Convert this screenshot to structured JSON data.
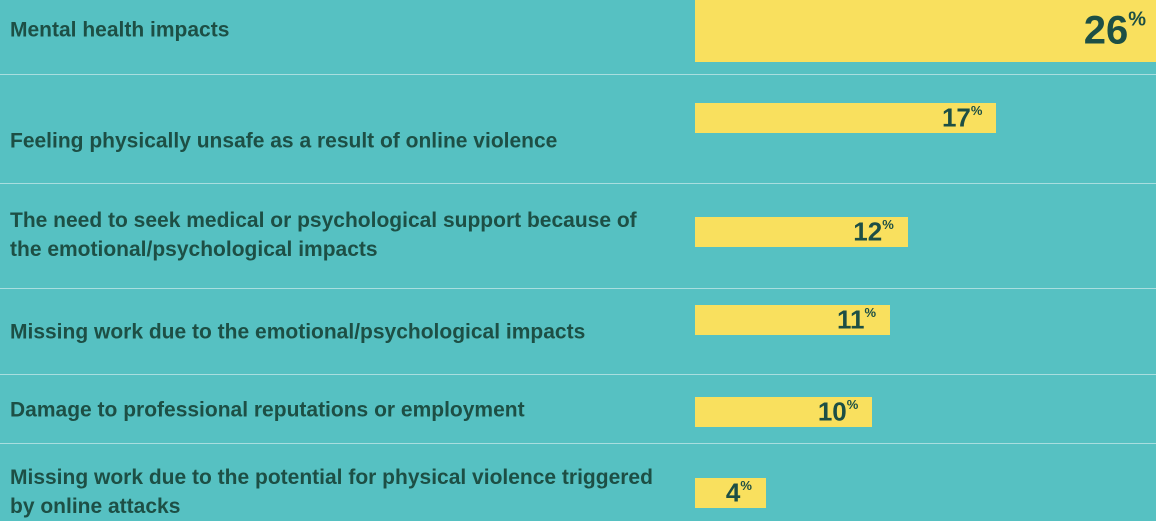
{
  "chart_data": {
    "type": "bar",
    "orientation": "horizontal",
    "categories": [
      "Mental health impacts",
      "Feeling physically unsafe as a result of online violence",
      "The need to seek medical or psychological support because of the emotional/psychological impacts",
      "Missing work due to the emotional/psychological impacts",
      "Damage to professional reputations or employment",
      "Missing work due to the potential for physical violence triggered by online attacks"
    ],
    "values": [
      26,
      17,
      12,
      11,
      10,
      4
    ],
    "value_labels": [
      "26%",
      "17%",
      "12%",
      "11%",
      "10%",
      "4%"
    ],
    "color": "#f9e05e"
  }
}
